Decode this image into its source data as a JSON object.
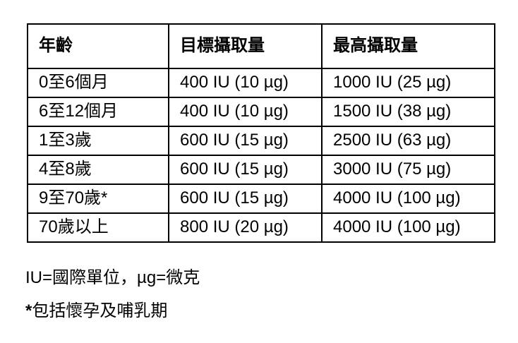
{
  "table": {
    "columns": {
      "age": "年齡",
      "target": "目標攝取量",
      "max": "最高攝取量"
    },
    "rows": [
      {
        "age": "0至6個月",
        "target": "400 IU (10 µg)",
        "max": "1000 IU (25 µg)"
      },
      {
        "age": "6至12個月",
        "target": "400 IU (10 µg)",
        "max": "1500 IU (38 µg)"
      },
      {
        "age": "1至3歲",
        "target": "600 IU (15 µg)",
        "max": "2500 IU (63 µg)"
      },
      {
        "age": "4至8歲",
        "target": "600 IU (15 µg)",
        "max": "3000 IU (75 µg)"
      },
      {
        "age": "9至70歲*",
        "target": "600 IU (15 µg)",
        "max": "4000 IU (100 µg)"
      },
      {
        "age": "70歲以上",
        "target": "800 IU (20 µg)",
        "max": "4000 IU (100 µg)"
      }
    ]
  },
  "notes": {
    "units": "IU=國際單位，µg=微克",
    "asterisk_marker": "*",
    "asterisk_text": "包括懷孕及哺乳期"
  },
  "colors": {
    "border": "#000000",
    "text": "#000000",
    "background": "#ffffff"
  }
}
